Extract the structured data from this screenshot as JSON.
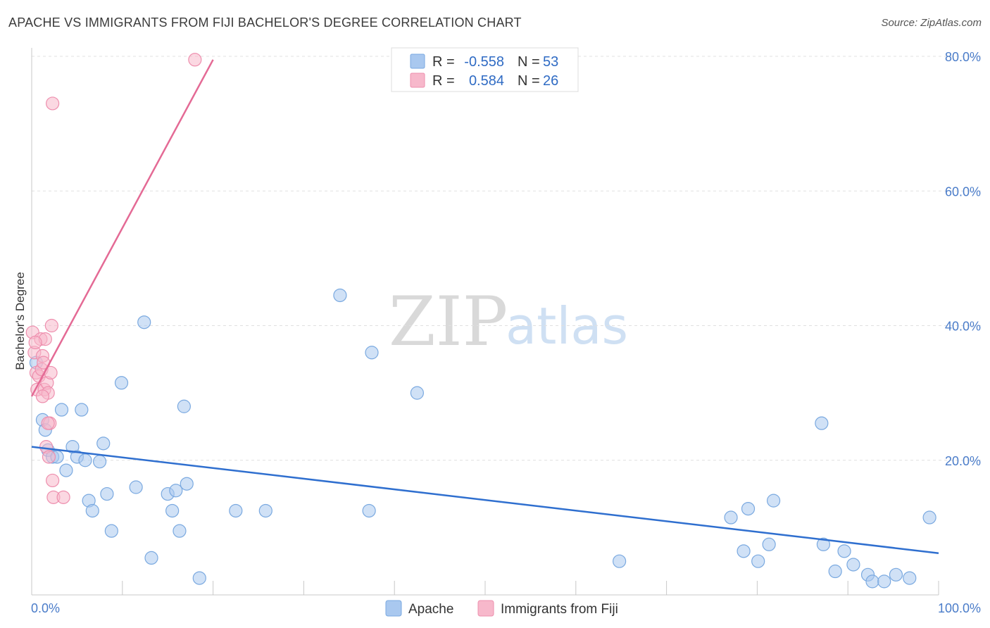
{
  "header": {
    "title": "APACHE VS IMMIGRANTS FROM FIJI BACHELOR'S DEGREE CORRELATION CHART",
    "source": "Source: ZipAtlas.com"
  },
  "watermark": {
    "zip": "ZIP",
    "atlas": "atlas"
  },
  "legend": {
    "rows": [
      {
        "r_label": "R =",
        "r_value": "-0.558",
        "n_label": "N =",
        "n_value": "53",
        "color": "#a9c8ef"
      },
      {
        "r_label": "R =",
        "r_value": "0.584",
        "n_label": "N =",
        "n_value": "26",
        "color": "#f7b8cb"
      }
    ]
  },
  "bottom_legend": [
    {
      "label": "Apache",
      "color": "#a9c8ef"
    },
    {
      "label": "Immigrants from Fiji",
      "color": "#f7b8cb"
    }
  ],
  "colors": {
    "apache_fill": "#a9c8ef",
    "apache_stroke": "#7aa9e0",
    "apache_line": "#2f6fcf",
    "fiji_fill": "#f7b8cb",
    "fiji_stroke": "#ee8fae",
    "fiji_line": "#e46a95",
    "grid": "#e0e0e0",
    "axis_text": "#4a7cc9"
  },
  "chart_data": {
    "type": "scatter",
    "title": "APACHE VS IMMIGRANTS FROM FIJI BACHELOR'S DEGREE CORRELATION CHART",
    "xlabel": "",
    "ylabel": "Bachelor's Degree",
    "xlim": [
      0,
      100
    ],
    "ylim": [
      0,
      80
    ],
    "x_tick_labels": [
      "0.0%",
      "100.0%"
    ],
    "y_ticks": [
      20,
      40,
      60,
      80
    ],
    "y_tick_labels": [
      "20.0%",
      "40.0%",
      "60.0%",
      "80.0%"
    ],
    "grid": true,
    "legend_position": "top-center",
    "series": [
      {
        "name": "Apache",
        "r": -0.558,
        "n": 53,
        "trend": {
          "x": [
            0,
            100
          ],
          "y": [
            22.0,
            6.2
          ]
        },
        "points": [
          [
            0.5,
            34.5
          ],
          [
            1.2,
            26.0
          ],
          [
            1.5,
            24.5
          ],
          [
            1.8,
            21.5
          ],
          [
            2.3,
            20.5
          ],
          [
            2.8,
            20.5
          ],
          [
            3.3,
            27.5
          ],
          [
            3.8,
            18.5
          ],
          [
            4.5,
            22.0
          ],
          [
            5.0,
            20.5
          ],
          [
            5.5,
            27.5
          ],
          [
            5.9,
            20.0
          ],
          [
            6.3,
            14.0
          ],
          [
            6.7,
            12.5
          ],
          [
            7.5,
            19.8
          ],
          [
            7.9,
            22.5
          ],
          [
            8.3,
            15.0
          ],
          [
            8.8,
            9.5
          ],
          [
            9.9,
            31.5
          ],
          [
            11.5,
            16.0
          ],
          [
            12.4,
            40.5
          ],
          [
            13.2,
            5.5
          ],
          [
            15.0,
            15.0
          ],
          [
            15.5,
            12.5
          ],
          [
            15.9,
            15.5
          ],
          [
            16.3,
            9.5
          ],
          [
            16.8,
            28.0
          ],
          [
            17.1,
            16.5
          ],
          [
            18.5,
            2.5
          ],
          [
            22.5,
            12.5
          ],
          [
            25.8,
            12.5
          ],
          [
            34.0,
            44.5
          ],
          [
            37.2,
            12.5
          ],
          [
            37.5,
            36.0
          ],
          [
            42.5,
            30.0
          ],
          [
            64.8,
            5.0
          ],
          [
            77.1,
            11.5
          ],
          [
            78.5,
            6.5
          ],
          [
            79.0,
            12.8
          ],
          [
            80.1,
            5.0
          ],
          [
            81.3,
            7.5
          ],
          [
            81.8,
            14.0
          ],
          [
            87.1,
            25.5
          ],
          [
            87.3,
            7.5
          ],
          [
            88.6,
            3.5
          ],
          [
            89.6,
            6.5
          ],
          [
            90.6,
            4.5
          ],
          [
            92.2,
            3.0
          ],
          [
            92.7,
            2.0
          ],
          [
            94.0,
            2.0
          ],
          [
            95.3,
            3.0
          ],
          [
            96.8,
            2.5
          ],
          [
            99.0,
            11.5
          ]
        ]
      },
      {
        "name": "Immigrants from Fiji",
        "r": 0.584,
        "n": 26,
        "trend": {
          "x": [
            0,
            20
          ],
          "y": [
            29.5,
            79.5
          ]
        },
        "points": [
          [
            0.1,
            39.0
          ],
          [
            0.3,
            36.0
          ],
          [
            0.5,
            33.0
          ],
          [
            0.6,
            30.5
          ],
          [
            0.8,
            32.5
          ],
          [
            1.0,
            38.0
          ],
          [
            1.1,
            33.5
          ],
          [
            1.2,
            35.5
          ],
          [
            1.3,
            34.5
          ],
          [
            1.4,
            30.5
          ],
          [
            1.5,
            38.0
          ],
          [
            1.6,
            22.0
          ],
          [
            1.7,
            31.5
          ],
          [
            1.8,
            30.0
          ],
          [
            1.9,
            20.5
          ],
          [
            2.0,
            25.5
          ],
          [
            2.1,
            33.0
          ],
          [
            2.2,
            40.0
          ],
          [
            2.3,
            17.0
          ],
          [
            2.4,
            14.5
          ],
          [
            1.2,
            29.5
          ],
          [
            3.5,
            14.5
          ],
          [
            2.3,
            73.0
          ],
          [
            1.8,
            25.5
          ],
          [
            0.4,
            37.5
          ],
          [
            18.0,
            79.5
          ]
        ]
      }
    ]
  }
}
